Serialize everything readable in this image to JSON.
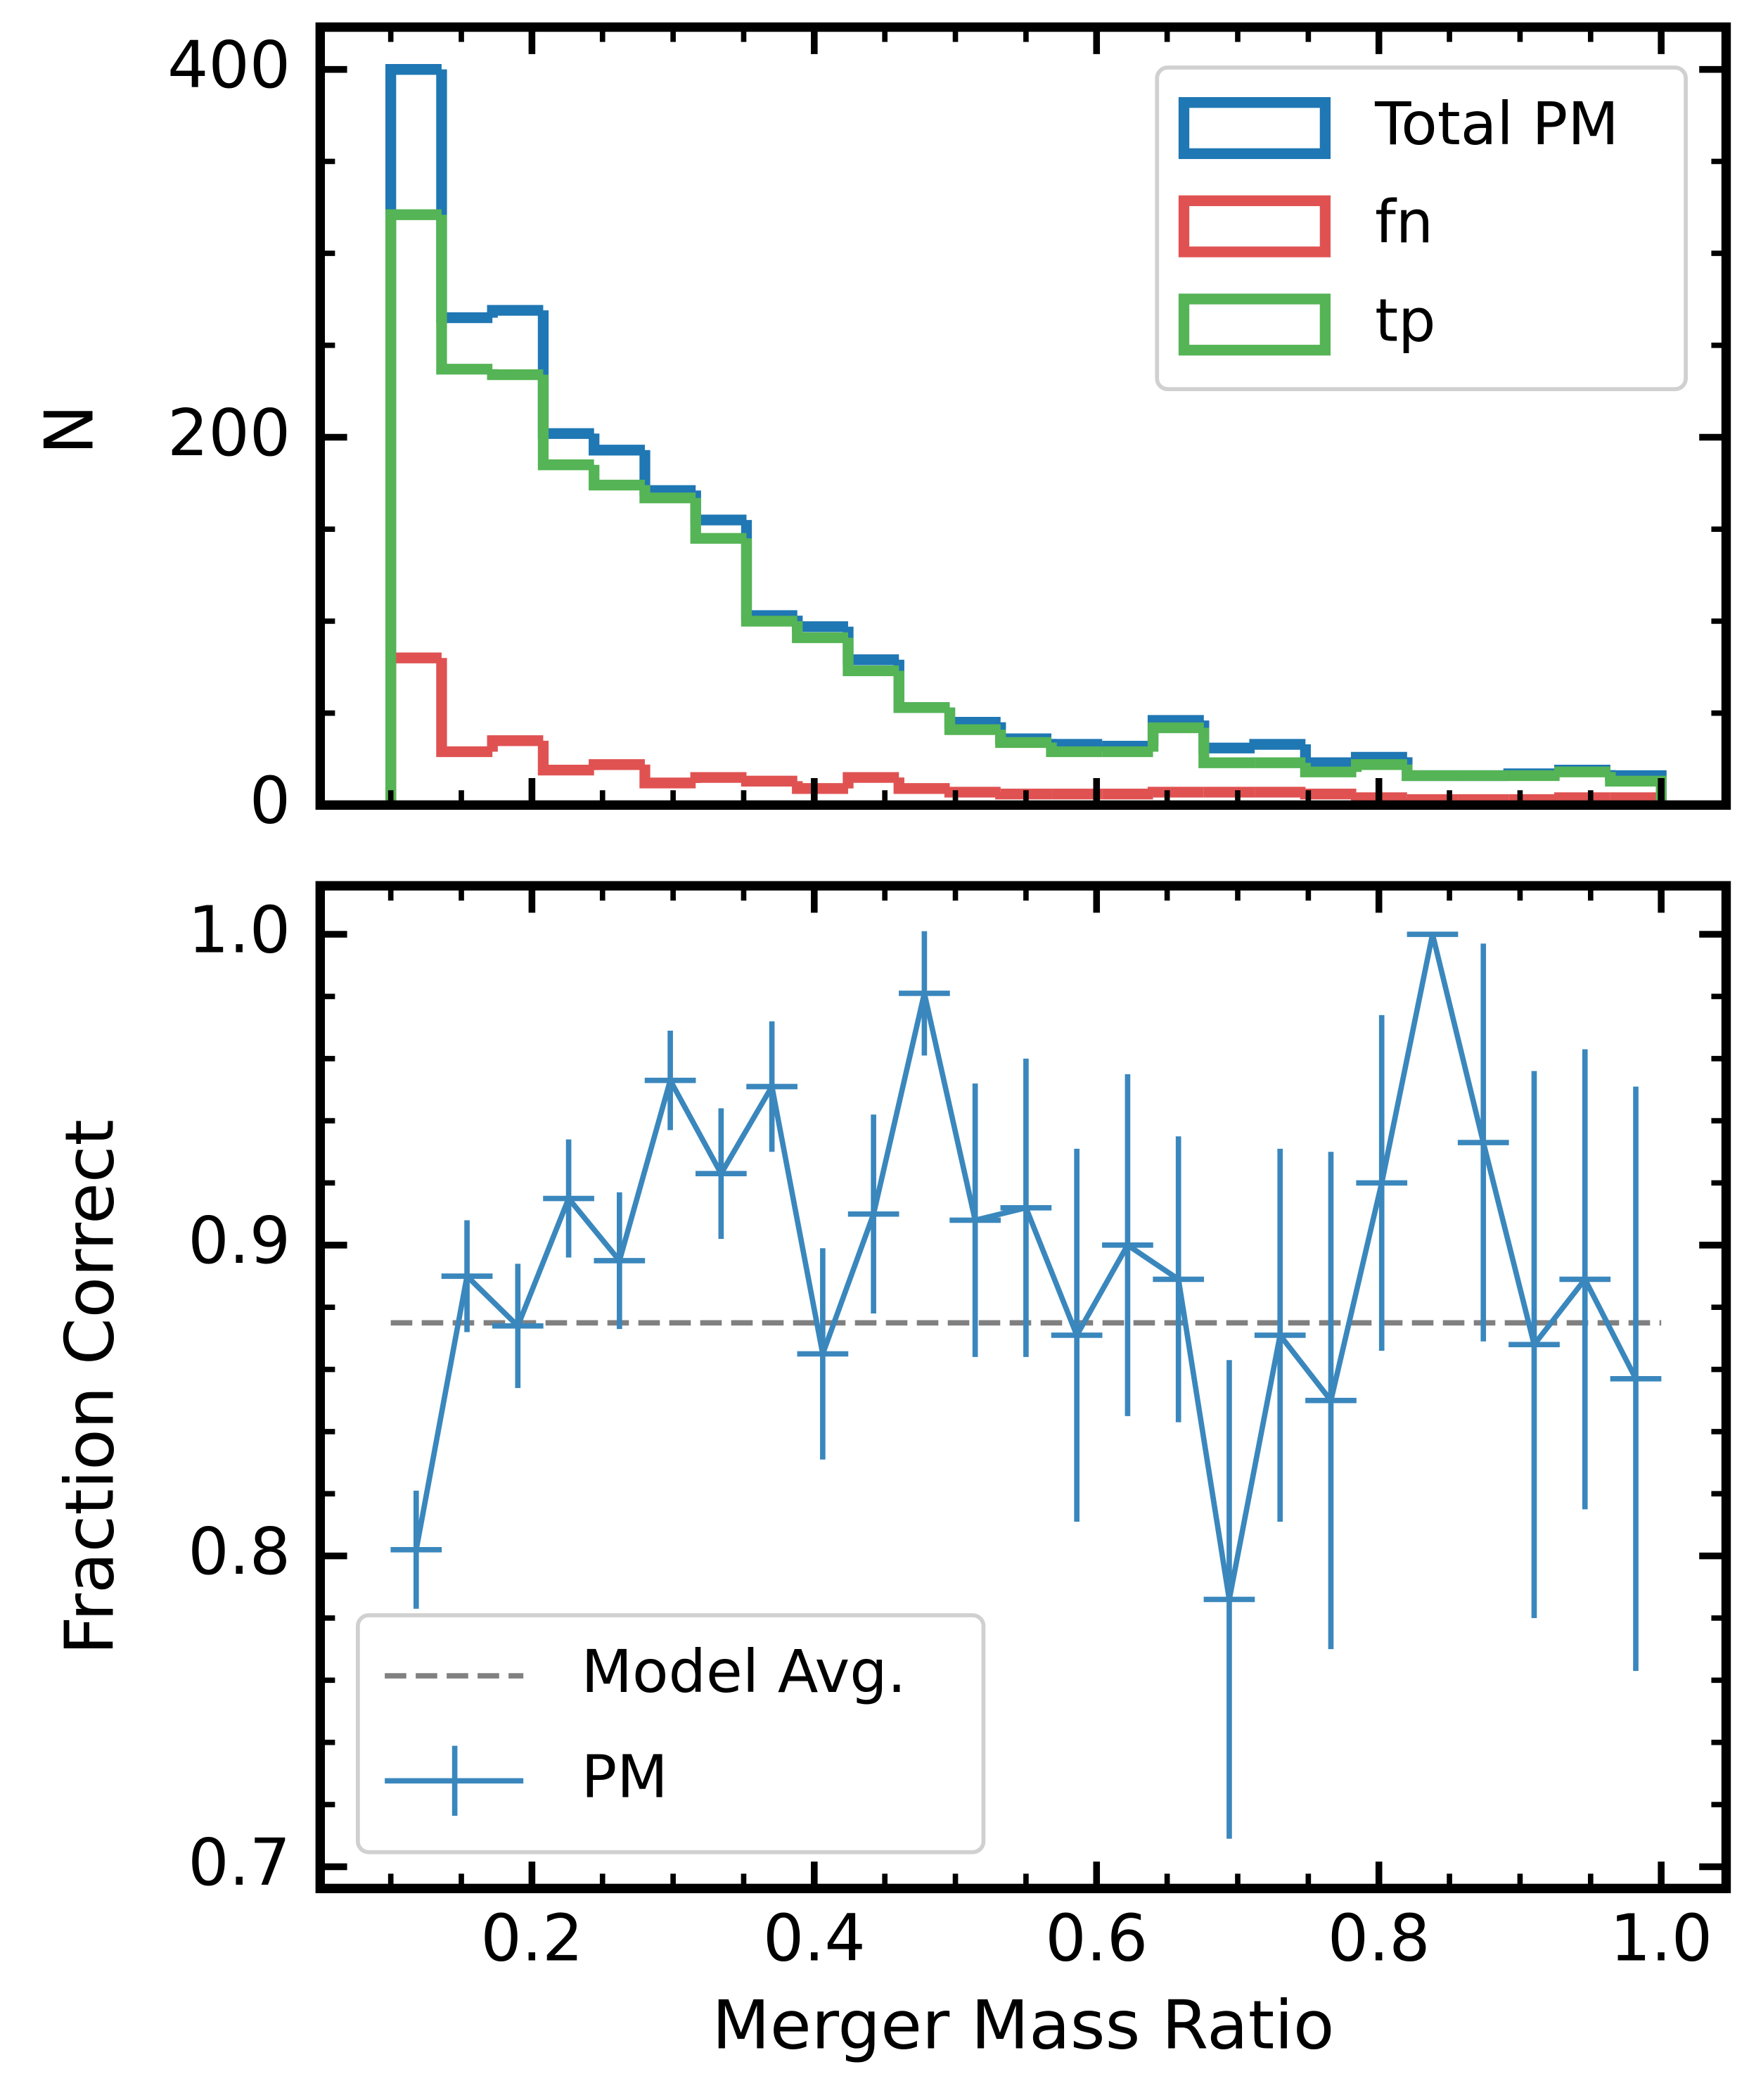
{
  "chart_data": [
    {
      "type": "histogram",
      "ylabel": "N",
      "bins": [
        0.1,
        0.136,
        0.172,
        0.208,
        0.244,
        0.28,
        0.316,
        0.352,
        0.388,
        0.424,
        0.46,
        0.496,
        0.532,
        0.568,
        0.604,
        0.64,
        0.676,
        0.712,
        0.748,
        0.784,
        0.82,
        0.856,
        0.892,
        0.928,
        0.964,
        1.0
      ],
      "series": [
        {
          "name": "Total PM",
          "color": "#1f77b4",
          "values": [
            400,
            265,
            269,
            202,
            193,
            171,
            155,
            103,
            97,
            79,
            53,
            45,
            36,
            33,
            32,
            46,
            31,
            33,
            23,
            26,
            16,
            16,
            17,
            19,
            16
          ]
        },
        {
          "name": "fn",
          "color": "#e05252",
          "values": [
            80,
            29,
            35,
            19,
            22,
            12,
            15,
            13,
            9,
            15,
            9,
            7,
            6,
            6,
            6,
            7,
            7,
            7,
            6,
            4,
            3,
            3,
            3,
            4,
            4
          ]
        },
        {
          "name": "tp",
          "color": "#55b455",
          "values": [
            321,
            237,
            234,
            185,
            174,
            167,
            145,
            100,
            91,
            73,
            53,
            41,
            34,
            29,
            29,
            42,
            23,
            23,
            18,
            22,
            16,
            16,
            16,
            18,
            13
          ]
        }
      ],
      "xlim": [
        0.05,
        1.046
      ],
      "ylim": [
        0,
        423
      ],
      "xticks": [
        0.2,
        0.4,
        0.6,
        0.8,
        1.0
      ],
      "xtick_labels": false,
      "xticks_minor": [
        0.1,
        0.15,
        0.25,
        0.3,
        0.35,
        0.45,
        0.5,
        0.55,
        0.65,
        0.7,
        0.75,
        0.85,
        0.9,
        0.95
      ],
      "yticks": [
        0,
        200,
        400
      ],
      "yticks_minor": [
        50,
        100,
        150,
        250,
        300,
        350
      ],
      "legend": "upper right"
    },
    {
      "type": "errorbar",
      "xlabel": "Merger Mass Ratio",
      "ylabel": "Fraction Correct",
      "x": [
        0.118,
        0.154,
        0.19,
        0.226,
        0.262,
        0.298,
        0.334,
        0.37,
        0.406,
        0.442,
        0.478,
        0.514,
        0.55,
        0.586,
        0.622,
        0.658,
        0.694,
        0.73,
        0.766,
        0.802,
        0.838,
        0.874,
        0.91,
        0.946,
        0.982
      ],
      "hlines": [
        {
          "name": "Model Avg.",
          "y": 0.875,
          "xmin": 0.1,
          "xmax": 1.0,
          "color": "#808080"
        }
      ],
      "series": [
        {
          "name": "PM",
          "color": "#3a87bd",
          "values": [
            0.802,
            0.89,
            0.874,
            0.915,
            0.895,
            0.953,
            0.923,
            0.951,
            0.865,
            0.91,
            0.981,
            0.908,
            0.912,
            0.871,
            0.9,
            0.889,
            0.786,
            0.871,
            0.85,
            0.92,
            1.0,
            0.933,
            0.868,
            0.889,
            0.857
          ],
          "errors": [
            0.019,
            0.018,
            0.02,
            0.019,
            0.022,
            0.016,
            0.021,
            0.021,
            0.034,
            0.032,
            0.02,
            0.044,
            0.048,
            0.06,
            0.055,
            0.046,
            0.077,
            0.06,
            0.08,
            0.054,
            0,
            0.064,
            0.088,
            0.074,
            0.094
          ]
        }
      ],
      "xlim": [
        0.05,
        1.046
      ],
      "ylim": [
        0.693,
        1.0156
      ],
      "xticks": [
        0.2,
        0.4,
        0.6,
        0.8,
        {
          "value": 1.0,
          "label": "1.0"
        }
      ],
      "xticks_minor": [
        0.1,
        0.15,
        0.25,
        0.3,
        0.35,
        0.45,
        0.5,
        0.55,
        0.65,
        0.7,
        0.75,
        0.85,
        0.9,
        0.95
      ],
      "yticks": [
        0.7,
        0.8,
        0.9,
        {
          "value": 1.0,
          "label": "1.0"
        }
      ],
      "yticks_minor": [
        0.72,
        0.74,
        0.76,
        0.78,
        0.82,
        0.84,
        0.86,
        0.88,
        0.92,
        0.94,
        0.96,
        0.98
      ],
      "legend": "lower left"
    }
  ]
}
